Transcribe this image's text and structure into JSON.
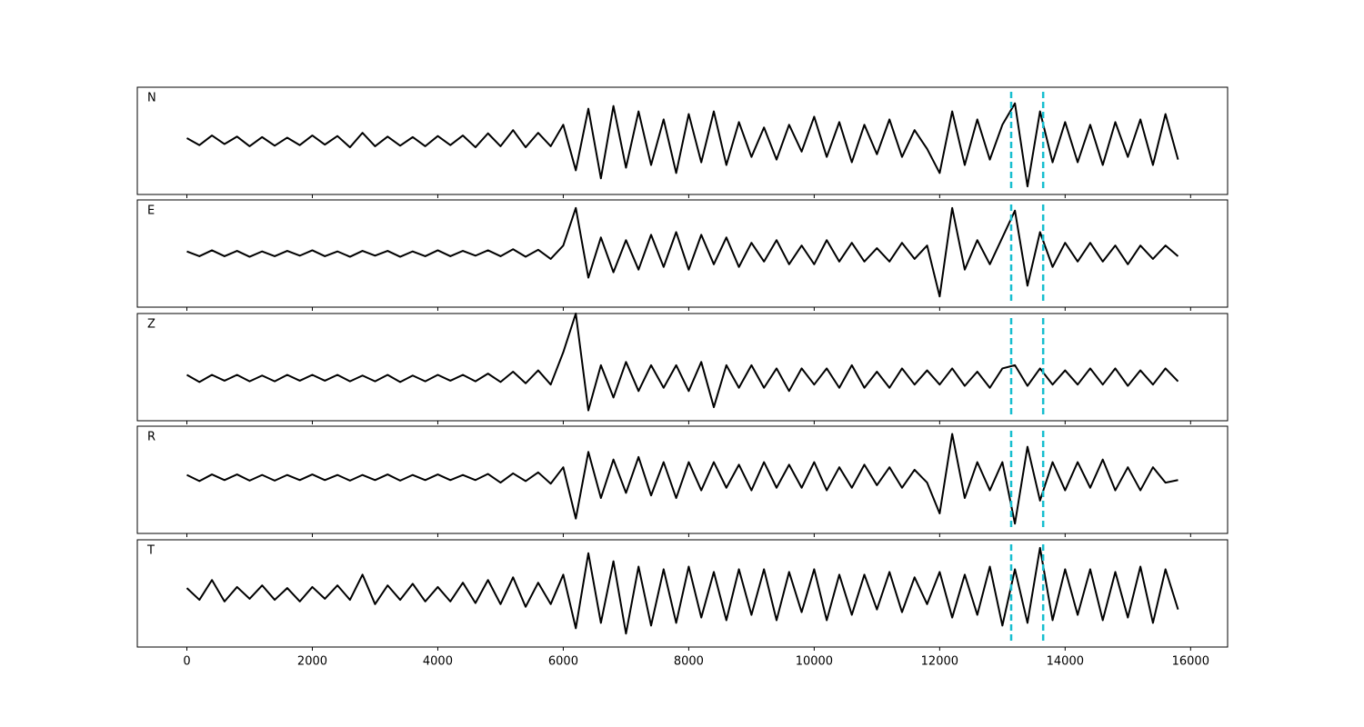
{
  "chart_data": [
    {
      "type": "line",
      "label": "N",
      "color": "#000000",
      "vlines": [
        13140,
        13650
      ],
      "vline_color": "#17becf",
      "x": [
        0,
        200,
        400,
        600,
        800,
        1000,
        1200,
        1400,
        1600,
        1800,
        2000,
        2200,
        2400,
        2600,
        2800,
        3000,
        3200,
        3400,
        3600,
        3800,
        4000,
        4200,
        4400,
        4600,
        4800,
        5000,
        5200,
        5400,
        5600,
        5800,
        6000,
        6200,
        6400,
        6600,
        6800,
        7000,
        7200,
        7400,
        7600,
        7800,
        8000,
        8200,
        8400,
        8600,
        8800,
        9000,
        9200,
        9400,
        9600,
        9800,
        10000,
        10200,
        10400,
        10600,
        10800,
        11000,
        11200,
        11400,
        11600,
        11800,
        12000,
        12200,
        12400,
        12600,
        12800,
        13000,
        13200,
        13400,
        13600,
        13800,
        14000,
        14200,
        14400,
        14600,
        14800,
        15000,
        15200,
        15400,
        15600,
        15800
      ],
      "values": [
        0.05,
        -0.08,
        0.1,
        -0.06,
        0.08,
        -0.1,
        0.07,
        -0.09,
        0.06,
        -0.08,
        0.1,
        -0.07,
        0.09,
        -0.12,
        0.15,
        -0.1,
        0.08,
        -0.09,
        0.07,
        -0.1,
        0.09,
        -0.08,
        0.1,
        -0.12,
        0.14,
        -0.1,
        0.2,
        -0.12,
        0.15,
        -0.1,
        0.3,
        -0.55,
        0.6,
        -0.7,
        0.65,
        -0.5,
        0.55,
        -0.45,
        0.4,
        -0.6,
        0.5,
        -0.4,
        0.55,
        -0.45,
        0.35,
        -0.3,
        0.25,
        -0.35,
        0.3,
        -0.2,
        0.45,
        -0.3,
        0.35,
        -0.4,
        0.3,
        -0.25,
        0.4,
        -0.3,
        0.2,
        -0.15,
        -0.6,
        0.55,
        -0.45,
        0.4,
        -0.35,
        0.3,
        0.7,
        -0.85,
        0.55,
        -0.4,
        0.35,
        -0.4,
        0.3,
        -0.45,
        0.35,
        -0.3,
        0.4,
        -0.45,
        0.5,
        -0.35
      ],
      "xlim": [
        -790,
        16590
      ],
      "ylim": [
        -1,
        1
      ],
      "xticks": [
        0,
        2000,
        4000,
        6000,
        8000,
        10000,
        12000,
        14000,
        16000
      ]
    },
    {
      "type": "line",
      "label": "E",
      "color": "#000000",
      "vlines": [
        13140,
        13650
      ],
      "vline_color": "#17becf",
      "x": [
        0,
        200,
        400,
        600,
        800,
        1000,
        1200,
        1400,
        1600,
        1800,
        2000,
        2200,
        2400,
        2600,
        2800,
        3000,
        3200,
        3400,
        3600,
        3800,
        4000,
        4200,
        4400,
        4600,
        4800,
        5000,
        5200,
        5400,
        5600,
        5800,
        6000,
        6200,
        6400,
        6600,
        6800,
        7000,
        7200,
        7400,
        7600,
        7800,
        8000,
        8200,
        8400,
        8600,
        8800,
        9000,
        9200,
        9400,
        9600,
        9800,
        10000,
        10200,
        10400,
        10600,
        10800,
        11000,
        11200,
        11400,
        11600,
        11800,
        12000,
        12200,
        12400,
        12600,
        12800,
        13000,
        13200,
        13400,
        13600,
        13800,
        14000,
        14200,
        14400,
        14600,
        14800,
        15000,
        15200,
        15400,
        15600,
        15800
      ],
      "values": [
        0.04,
        -0.05,
        0.06,
        -0.05,
        0.05,
        -0.06,
        0.04,
        -0.05,
        0.05,
        -0.04,
        0.06,
        -0.05,
        0.04,
        -0.06,
        0.05,
        -0.04,
        0.05,
        -0.06,
        0.04,
        -0.05,
        0.06,
        -0.05,
        0.05,
        -0.04,
        0.06,
        -0.05,
        0.08,
        -0.06,
        0.07,
        -0.1,
        0.15,
        0.85,
        -0.45,
        0.3,
        -0.35,
        0.25,
        -0.3,
        0.35,
        -0.25,
        0.4,
        -0.3,
        0.35,
        -0.2,
        0.3,
        -0.25,
        0.2,
        -0.15,
        0.25,
        -0.2,
        0.15,
        -0.2,
        0.25,
        -0.15,
        0.2,
        -0.15,
        0.1,
        -0.15,
        0.2,
        -0.1,
        0.15,
        -0.8,
        0.85,
        -0.3,
        0.25,
        -0.2,
        0.3,
        0.8,
        -0.6,
        0.4,
        -0.25,
        0.2,
        -0.15,
        0.2,
        -0.15,
        0.15,
        -0.2,
        0.15,
        -0.1,
        0.15,
        -0.05
      ],
      "xlim": [
        -790,
        16590
      ],
      "ylim": [
        -1,
        1
      ],
      "xticks": [
        0,
        2000,
        4000,
        6000,
        8000,
        10000,
        12000,
        14000,
        16000
      ]
    },
    {
      "type": "line",
      "label": "Z",
      "color": "#000000",
      "vlines": [
        13140,
        13650
      ],
      "vline_color": "#17becf",
      "x": [
        0,
        200,
        400,
        600,
        800,
        1000,
        1200,
        1400,
        1600,
        1800,
        2000,
        2200,
        2400,
        2600,
        2800,
        3000,
        3200,
        3400,
        3600,
        3800,
        4000,
        4200,
        4400,
        4600,
        4800,
        5000,
        5200,
        5400,
        5600,
        5800,
        6000,
        6200,
        6400,
        6600,
        6800,
        7000,
        7200,
        7400,
        7600,
        7800,
        8000,
        8200,
        8400,
        8600,
        8800,
        9000,
        9200,
        9400,
        9600,
        9800,
        10000,
        10200,
        10400,
        10600,
        10800,
        11000,
        11200,
        11400,
        11600,
        11800,
        12000,
        12200,
        12400,
        12600,
        12800,
        13000,
        13200,
        13400,
        13600,
        13800,
        14000,
        14200,
        14400,
        14600,
        14800,
        15000,
        15200,
        15400,
        15600,
        15800
      ],
      "values": [
        0.05,
        -0.06,
        0.05,
        -0.04,
        0.05,
        -0.05,
        0.04,
        -0.05,
        0.05,
        -0.04,
        0.05,
        -0.04,
        0.05,
        -0.05,
        0.04,
        -0.05,
        0.05,
        -0.06,
        0.04,
        -0.05,
        0.05,
        -0.04,
        0.05,
        -0.05,
        0.07,
        -0.06,
        0.1,
        -0.08,
        0.12,
        -0.1,
        0.4,
        1.0,
        -0.5,
        0.2,
        -0.3,
        0.25,
        -0.2,
        0.2,
        -0.15,
        0.2,
        -0.2,
        0.25,
        -0.45,
        0.2,
        -0.15,
        0.2,
        -0.15,
        0.15,
        -0.2,
        0.15,
        -0.1,
        0.15,
        -0.15,
        0.2,
        -0.15,
        0.1,
        -0.15,
        0.15,
        -0.1,
        0.12,
        -0.1,
        0.15,
        -0.12,
        0.1,
        -0.15,
        0.15,
        0.2,
        -0.12,
        0.15,
        -0.1,
        0.12,
        -0.1,
        0.15,
        -0.1,
        0.15,
        -0.12,
        0.12,
        -0.1,
        0.15,
        -0.05
      ],
      "xlim": [
        -790,
        16590
      ],
      "ylim": [
        -0.66,
        1
      ],
      "xticks": [
        0,
        2000,
        4000,
        6000,
        8000,
        10000,
        12000,
        14000,
        16000
      ]
    },
    {
      "type": "line",
      "label": "R",
      "color": "#000000",
      "vlines": [
        13140,
        13650
      ],
      "vline_color": "#17becf",
      "x": [
        0,
        200,
        400,
        600,
        800,
        1000,
        1200,
        1400,
        1600,
        1800,
        2000,
        2200,
        2400,
        2600,
        2800,
        3000,
        3200,
        3400,
        3600,
        3800,
        4000,
        4200,
        4400,
        4600,
        4800,
        5000,
        5200,
        5400,
        5600,
        5800,
        6000,
        6200,
        6400,
        6600,
        6800,
        7000,
        7200,
        7400,
        7600,
        7800,
        8000,
        8200,
        8400,
        8600,
        8800,
        9000,
        9200,
        9400,
        9600,
        9800,
        10000,
        10200,
        10400,
        10600,
        10800,
        11000,
        11200,
        11400,
        11600,
        11800,
        12000,
        12200,
        12400,
        12600,
        12800,
        13000,
        13200,
        13400,
        13600,
        13800,
        14000,
        14200,
        14400,
        14600,
        14800,
        15000,
        15200,
        15400,
        15600,
        15800
      ],
      "values": [
        0.05,
        -0.07,
        0.06,
        -0.05,
        0.06,
        -0.06,
        0.05,
        -0.06,
        0.05,
        -0.05,
        0.06,
        -0.05,
        0.05,
        -0.06,
        0.05,
        -0.05,
        0.06,
        -0.06,
        0.05,
        -0.05,
        0.06,
        -0.05,
        0.05,
        -0.05,
        0.07,
        -0.1,
        0.08,
        -0.07,
        0.1,
        -0.12,
        0.2,
        -0.8,
        0.5,
        -0.4,
        0.35,
        -0.3,
        0.4,
        -0.35,
        0.3,
        -0.4,
        0.3,
        -0.25,
        0.3,
        -0.2,
        0.25,
        -0.25,
        0.3,
        -0.2,
        0.25,
        -0.2,
        0.3,
        -0.25,
        0.2,
        -0.2,
        0.25,
        -0.15,
        0.2,
        -0.2,
        0.15,
        -0.1,
        -0.7,
        0.85,
        -0.4,
        0.3,
        -0.25,
        0.3,
        -0.9,
        0.6,
        -0.45,
        0.3,
        -0.25,
        0.3,
        -0.2,
        0.35,
        -0.25,
        0.2,
        -0.25,
        0.2,
        -0.1,
        -0.05
      ],
      "xlim": [
        -790,
        16590
      ],
      "ylim": [
        -1.09,
        1
      ],
      "xticks": [
        0,
        2000,
        4000,
        6000,
        8000,
        10000,
        12000,
        14000,
        16000
      ]
    },
    {
      "type": "line",
      "label": "T",
      "color": "#000000",
      "vlines": [
        13140,
        13650
      ],
      "vline_color": "#17becf",
      "x": [
        0,
        200,
        400,
        600,
        800,
        1000,
        1200,
        1400,
        1600,
        1800,
        2000,
        2200,
        2400,
        2600,
        2800,
        3000,
        3200,
        3400,
        3600,
        3800,
        4000,
        4200,
        4400,
        4600,
        4800,
        5000,
        5200,
        5400,
        5600,
        5800,
        6000,
        6200,
        6400,
        6600,
        6800,
        7000,
        7200,
        7400,
        7600,
        7800,
        8000,
        8200,
        8400,
        8600,
        8800,
        9000,
        9200,
        9400,
        9600,
        9800,
        10000,
        10200,
        10400,
        10600,
        10800,
        11000,
        11200,
        11400,
        11600,
        11800,
        12000,
        12200,
        12400,
        12600,
        12800,
        13000,
        13200,
        13400,
        13600,
        13800,
        14000,
        14200,
        14400,
        14600,
        14800,
        15000,
        15200,
        15400,
        15600,
        15800
      ],
      "values": [
        0.1,
        -0.12,
        0.25,
        -0.15,
        0.12,
        -0.1,
        0.15,
        -0.12,
        0.1,
        -0.15,
        0.12,
        -0.1,
        0.15,
        -0.12,
        0.35,
        -0.2,
        0.15,
        -0.12,
        0.18,
        -0.15,
        0.12,
        -0.15,
        0.2,
        -0.18,
        0.25,
        -0.2,
        0.3,
        -0.25,
        0.2,
        -0.2,
        0.35,
        -0.65,
        0.75,
        -0.55,
        0.6,
        -0.75,
        0.5,
        -0.6,
        0.45,
        -0.55,
        0.5,
        -0.45,
        0.4,
        -0.5,
        0.45,
        -0.4,
        0.45,
        -0.5,
        0.4,
        -0.35,
        0.45,
        -0.5,
        0.35,
        -0.4,
        0.35,
        -0.3,
        0.4,
        -0.35,
        0.3,
        -0.2,
        0.4,
        -0.45,
        0.35,
        -0.4,
        0.5,
        -0.6,
        0.45,
        -0.55,
        0.85,
        -0.5,
        0.45,
        -0.4,
        0.45,
        -0.5,
        0.4,
        -0.45,
        0.5,
        -0.55,
        0.45,
        -0.3
      ],
      "xlim": [
        -790,
        16590
      ],
      "ylim": [
        -1,
        1
      ],
      "xticks": [
        0,
        2000,
        4000,
        6000,
        8000,
        10000,
        12000,
        14000,
        16000
      ]
    }
  ]
}
